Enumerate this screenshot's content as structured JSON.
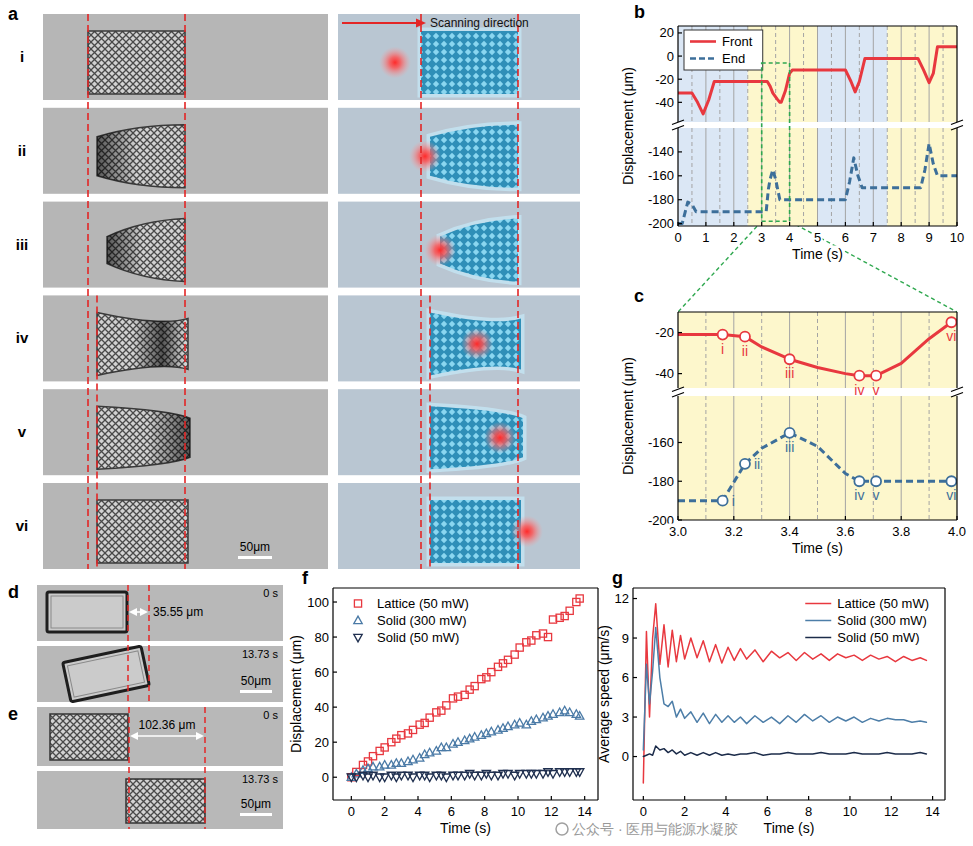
{
  "panel_a": {
    "label": "a",
    "rows": [
      "i",
      "ii",
      "iii",
      "iv",
      "v",
      "vi"
    ],
    "scanning_label": "Scanning direction",
    "scale_bar": "50μm"
  },
  "panel_d": {
    "label": "d",
    "distance": "35.55 μm",
    "time_start": "0 s",
    "time_end": "13.73 s",
    "scale_bar": "50μm"
  },
  "panel_e": {
    "label": "e",
    "distance": "102.36 μm",
    "time_start": "0 s",
    "time_end": "13.73 s",
    "scale_bar": "50μm"
  },
  "watermark": "公众号 · 医用与能源水凝胶",
  "chart_data": [
    {
      "panel": "b",
      "type": "line",
      "xlim": [
        0,
        10
      ],
      "xticks": [
        0,
        1,
        2,
        3,
        4,
        5,
        6,
        7,
        8,
        9,
        10
      ],
      "ylim": [
        -57,
        26
      ],
      "yticks": [
        20,
        0,
        -20,
        -40
      ],
      "y_label": "Displacement (μm)",
      "tick_labels": "y",
      "grid": true,
      "legend": "upper left",
      "bands": [
        {
          "from": 0,
          "to": 2.5,
          "color": "#dbe7f5"
        },
        {
          "from": 2.5,
          "to": 5,
          "color": "#fdf7cc"
        },
        {
          "from": 5,
          "to": 7.5,
          "color": "#dbe7f5"
        },
        {
          "from": 7.5,
          "to": 10,
          "color": "#fdf7cc"
        }
      ],
      "zoom_box": {
        "x": [
          3,
          4
        ],
        "y_top": -6,
        "y_bottom": -198
      },
      "series": [
        {
          "name": "Front",
          "color": "#e8383f",
          "line_style": "solid",
          "x": [
            0,
            0.5,
            0.7,
            0.9,
            1.1,
            1.3,
            3.2,
            3.3,
            3.4,
            3.55,
            3.65,
            3.7,
            3.85,
            4.0,
            4.1,
            6.0,
            6.2,
            6.35,
            6.5,
            6.7,
            8.6,
            8.8,
            9.0,
            9.15,
            9.3,
            10
          ],
          "values": [
            -32,
            -32,
            -40,
            -50,
            -38,
            -22,
            -22,
            -26,
            -32,
            -37,
            -40,
            -40,
            -30,
            -15,
            -12,
            -12,
            -22,
            -31,
            -22,
            -2,
            -2,
            -12,
            -23,
            -15,
            8,
            8
          ]
        }
      ]
    },
    {
      "type": "line",
      "xlim": [
        0,
        10
      ],
      "xticks": [
        0,
        1,
        2,
        3,
        4,
        5,
        6,
        7,
        8,
        9,
        10
      ],
      "ylim": [
        -202,
        -120
      ],
      "yticks": [
        -140,
        -160,
        -180,
        -200
      ],
      "x_label": "Time (s)",
      "grid": true,
      "series": [
        {
          "name": "End",
          "color": "#3d6f9a",
          "line_style": "dashed",
          "x": [
            0,
            0.15,
            0.35,
            0.5,
            0.65,
            3.16,
            3.24,
            3.3,
            3.4,
            3.5,
            3.65,
            6.0,
            6.15,
            6.3,
            6.45,
            6.6,
            8.7,
            8.85,
            9.0,
            9.15,
            9.3,
            10
          ],
          "values": [
            -200,
            -200,
            -182,
            -184,
            -190,
            -190,
            -171,
            -163,
            -155,
            -163,
            -180,
            -180,
            -165,
            -145,
            -160,
            -170,
            -170,
            -155,
            -133,
            -150,
            -160,
            -160
          ]
        }
      ]
    },
    {
      "panel": "c",
      "type": "line",
      "xlim": [
        3,
        4
      ],
      "xticks": [
        {
          "value": 3,
          "label": "3.0"
        },
        {
          "value": 3.2,
          "label": "3.2"
        },
        {
          "value": 3.4,
          "label": "3.4"
        },
        {
          "value": 3.6,
          "label": "3.6"
        },
        {
          "value": 3.8,
          "label": "3.8"
        },
        {
          "value": 4,
          "label": "4.0"
        }
      ],
      "ylim": [
        -47,
        -10
      ],
      "yticks": [
        -20,
        -40
      ],
      "y_label": "Displacement (μm)",
      "tick_labels": "y",
      "grid": true,
      "bands": [
        {
          "from": 3,
          "to": 4,
          "color": "#fdf7cc"
        }
      ],
      "series": [
        {
          "color": "#e8383f",
          "line_style": "solid",
          "x": [
            3.0,
            3.1,
            3.16,
            3.24,
            3.3,
            3.4,
            3.5,
            3.6,
            3.65,
            3.71,
            3.8,
            3.9,
            3.98,
            4.0
          ],
          "values": [
            -21,
            -21,
            -21,
            -22,
            -27,
            -33,
            -37,
            -40,
            -41,
            -41,
            -35,
            -23,
            -15,
            -14
          ],
          "annotations": [
            {
              "x": 3.16,
              "y": -21,
              "label": "i"
            },
            {
              "x": 3.24,
              "y": -22,
              "label": "ii"
            },
            {
              "x": 3.4,
              "y": -33,
              "label": "iii"
            },
            {
              "x": 3.65,
              "y": -41,
              "label": "iv"
            },
            {
              "x": 3.71,
              "y": -41,
              "label": "v"
            },
            {
              "x": 3.98,
              "y": -15,
              "label": "vi"
            }
          ]
        }
      ]
    },
    {
      "type": "line",
      "xlim": [
        3,
        4
      ],
      "xticks": [
        {
          "value": 3,
          "label": "3.0"
        },
        {
          "value": 3.2,
          "label": "3.2"
        },
        {
          "value": 3.4,
          "label": "3.4"
        },
        {
          "value": 3.6,
          "label": "3.6"
        },
        {
          "value": 3.8,
          "label": "3.8"
        },
        {
          "value": 4,
          "label": "4.0"
        }
      ],
      "ylim": [
        -200,
        -136
      ],
      "yticks": [
        -160,
        -180,
        -200
      ],
      "x_label": "Time (s)",
      "grid": true,
      "series": [
        {
          "color": "#3d6f9a",
          "line_style": "dashed",
          "x": [
            3.0,
            3.1,
            3.16,
            3.24,
            3.3,
            3.4,
            3.5,
            3.6,
            3.65,
            3.71,
            3.8,
            3.98,
            4.0
          ],
          "values": [
            -190,
            -190,
            -190,
            -171,
            -163,
            -155,
            -162,
            -176,
            -180,
            -180,
            -180,
            -180,
            -180
          ],
          "annotations": [
            {
              "x": 3.16,
              "y": -190,
              "label": "i"
            },
            {
              "x": 3.24,
              "y": -171,
              "label": "ii"
            },
            {
              "x": 3.4,
              "y": -155,
              "label": "iii"
            },
            {
              "x": 3.65,
              "y": -180,
              "label": "iv"
            },
            {
              "x": 3.71,
              "y": -180,
              "label": "v"
            },
            {
              "x": 3.98,
              "y": -180,
              "label": "vi"
            }
          ]
        }
      ]
    },
    {
      "panel": "f",
      "type": "scatter",
      "xlim": [
        -1.1,
        14.8
      ],
      "xticks": [
        0,
        2,
        4,
        6,
        8,
        10,
        12,
        14
      ],
      "ylim": [
        -13,
        108
      ],
      "yticks": [
        0,
        20,
        40,
        60,
        80,
        100
      ],
      "x_label": "Time (s)",
      "y_label": "Displacement (μm)",
      "legend": "upper left",
      "x": [
        0,
        0.3,
        0.7,
        1.0,
        1.3,
        1.7,
        2.0,
        2.4,
        2.7,
        3.0,
        3.4,
        3.7,
        4.1,
        4.4,
        4.7,
        5.1,
        5.4,
        5.7,
        6.1,
        6.4,
        6.8,
        7.1,
        7.4,
        7.8,
        8.1,
        8.4,
        8.8,
        9.1,
        9.4,
        9.8,
        10.1,
        10.5,
        10.8,
        11.1,
        11.5,
        11.8,
        12.1,
        12.5,
        12.8,
        13.1,
        13.5,
        13.7
      ],
      "series": [
        {
          "name": "Lattice (50 mW)",
          "color": "#e8383f",
          "marker": "square",
          "values": [
            0,
            3,
            7,
            9,
            12,
            15,
            17,
            20,
            22,
            24,
            25,
            27,
            30,
            31,
            34,
            37,
            38,
            41,
            45,
            46,
            47,
            50,
            52,
            56,
            57,
            60,
            63,
            65,
            67,
            70,
            74,
            77,
            78,
            81,
            82,
            80,
            90,
            91,
            92,
            95,
            100,
            102
          ]
        },
        {
          "name": "Solid (300 mW)",
          "color": "#4a7aa6",
          "marker": "triangle",
          "values": [
            0,
            2,
            4,
            5,
            6,
            6,
            7,
            7,
            8,
            8,
            9,
            10,
            11,
            13,
            14,
            15,
            17,
            17,
            19,
            20,
            21,
            22,
            23,
            24,
            25,
            26,
            27,
            28,
            29,
            30,
            31,
            30,
            32,
            33,
            34,
            35,
            36,
            37,
            38,
            37,
            36,
            35
          ]
        },
        {
          "name": "Solid (50 mW)",
          "color": "#1f2f4f",
          "marker": "triangle-down",
          "values": [
            0,
            0,
            1,
            0,
            1,
            0,
            0,
            1,
            0,
            1,
            1,
            0,
            1,
            1,
            0,
            1,
            1,
            0,
            1,
            1,
            1,
            2,
            1,
            1,
            2,
            1,
            1,
            2,
            2,
            1,
            2,
            2,
            2,
            2,
            2,
            3,
            2,
            3,
            3,
            3,
            3,
            3
          ]
        }
      ]
    },
    {
      "panel": "g",
      "type": "line",
      "xlim": [
        -0.5,
        14.6
      ],
      "xticks": [
        0,
        2,
        4,
        6,
        8,
        10,
        12,
        14
      ],
      "ylim": [
        -3.3,
        12.8
      ],
      "yticks": [
        0,
        3,
        6,
        9,
        12
      ],
      "x_label": "Time (s)",
      "y_label": "Average speed (μm/s)",
      "legend": "upper right",
      "x": [
        0,
        0.15,
        0.3,
        0.45,
        0.6,
        0.8,
        1.0,
        1.2,
        1.4,
        1.6,
        1.8,
        2.0,
        2.3,
        2.6,
        2.9,
        3.2,
        3.5,
        3.8,
        4.1,
        4.4,
        4.7,
        5.0,
        5.4,
        5.8,
        6.2,
        6.6,
        7.0,
        7.4,
        7.8,
        8.2,
        8.6,
        9.0,
        9.4,
        9.8,
        10.2,
        10.6,
        11.0,
        11.4,
        11.8,
        12.2,
        12.6,
        13.0,
        13.4,
        13.7
      ],
      "series": [
        {
          "name": "Lattice (50 mW)",
          "color": "#e8383f",
          "values": [
            -2,
            9.5,
            3,
            9,
            11.6,
            7,
            10,
            6.8,
            9.6,
            7.2,
            9.2,
            7.4,
            9,
            7.5,
            8.8,
            7.2,
            8.5,
            7.1,
            8.3,
            7.3,
            8.2,
            7.4,
            8.1,
            7.2,
            8,
            7.5,
            7.9,
            7.3,
            7.9,
            7.4,
            7.8,
            7.3,
            7.8,
            7.5,
            7.7,
            7.3,
            7.7,
            7.4,
            7.6,
            7.2,
            7.6,
            7.3,
            7.5,
            7.3
          ]
        },
        {
          "name": "Solid (300 mW)",
          "color": "#4d7ea8",
          "values": [
            0.5,
            7,
            4,
            6.5,
            9.8,
            6,
            4,
            3.8,
            4.2,
            3,
            3.6,
            2.9,
            3.4,
            2.6,
            3.3,
            2.5,
            3.2,
            2.6,
            3.1,
            2.6,
            3.0,
            2.5,
            3.1,
            2.6,
            3.0,
            2.5,
            3.1,
            2.6,
            3.2,
            2.7,
            3.1,
            2.6,
            3.0,
            2.7,
            3.0,
            2.6,
            2.9,
            2.7,
            2.9,
            2.8,
            2.8,
            2.6,
            2.7,
            2.6
          ]
        },
        {
          "name": "Solid (50 mW)",
          "color": "#1c2c4a",
          "values": [
            0,
            0.1,
            0.2,
            0.1,
            0.8,
            0.5,
            0.6,
            0.3,
            0.5,
            0.2,
            0.4,
            0.1,
            0.3,
            0.1,
            0.3,
            0.1,
            0.3,
            0.1,
            0.2,
            0.1,
            0.2,
            0.2,
            0.3,
            0.1,
            0.2,
            0.2,
            0.3,
            0.2,
            0.2,
            0.2,
            0.3,
            0.2,
            0.2,
            0.2,
            0.3,
            0.2,
            0.2,
            0.2,
            0.3,
            0.2,
            0.2,
            0.2,
            0.3,
            0.2
          ]
        }
      ]
    }
  ]
}
